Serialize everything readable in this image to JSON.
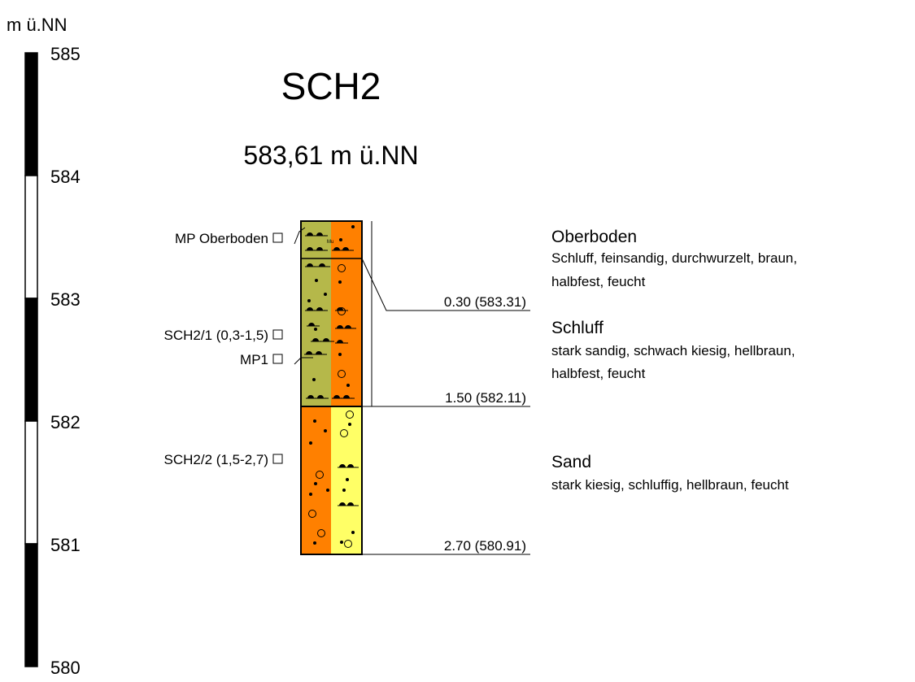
{
  "unit": "m ü.NN",
  "scale": [
    "585",
    "584",
    "583",
    "582",
    "581",
    "580"
  ],
  "title": "SCH2",
  "elevation": "583,61 m ü.NN",
  "samples": [
    "MP Oberboden",
    "SCH2/1 (0,3-1,5)",
    "MP1",
    "SCH2/2 (1,5-2,7)"
  ],
  "layers": [
    {
      "code": "Mu",
      "depth": "0.30 (583.31)",
      "name": "Oberboden",
      "description": [
        "Schluff, feinsandig, durchwurzelt, braun,",
        "halbfest, feucht"
      ]
    },
    {
      "depth": "1.50 (582.11)",
      "name": "Schluff",
      "description": [
        "stark sandig, schwach kiesig, hellbraun,",
        "halbfest, feucht"
      ]
    },
    {
      "depth": "2.70 (580.91)",
      "name": "Sand",
      "description": [
        "stark kiesig, schluffig, hellbraun, feucht"
      ]
    }
  ]
}
